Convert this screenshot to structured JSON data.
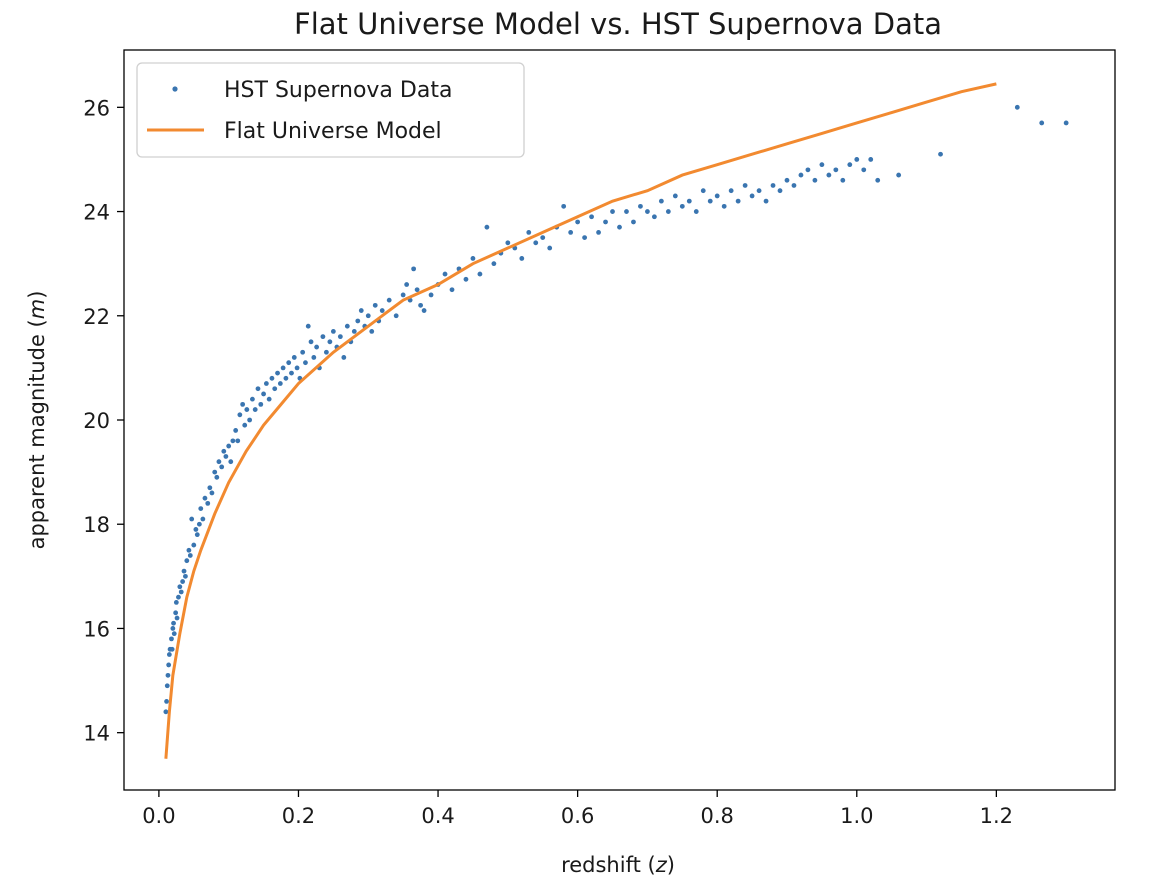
{
  "chart_data": {
    "type": "scatter",
    "title": "Flat Universe Model vs. HST Supernova Data",
    "xlabel": "redshift (",
    "xlabel_var": "z",
    "xlabel_close": ")",
    "ylabel": "apparent magnitude (",
    "ylabel_var": "m",
    "ylabel_close": ")",
    "xlim": [
      -0.05,
      1.37
    ],
    "ylim": [
      12.9,
      27.1
    ],
    "x_ticks": [
      0.0,
      0.2,
      0.4,
      0.6,
      0.8,
      1.0,
      1.2
    ],
    "x_tick_labels": [
      "0.0",
      "0.2",
      "0.4",
      "0.6",
      "0.8",
      "1.0",
      "1.2"
    ],
    "y_ticks": [
      14,
      16,
      18,
      20,
      22,
      24,
      26
    ],
    "y_tick_labels": [
      "14",
      "16",
      "18",
      "20",
      "22",
      "24",
      "26"
    ],
    "grid": false,
    "legend_position": "top-left",
    "colors": {
      "data": "#3a75b0",
      "model": "#f28a30"
    },
    "series": [
      {
        "name": "HST Supernova Data",
        "kind": "points",
        "points": [
          [
            0.01,
            14.4
          ],
          [
            0.011,
            14.6
          ],
          [
            0.012,
            14.9
          ],
          [
            0.013,
            15.1
          ],
          [
            0.014,
            15.3
          ],
          [
            0.015,
            15.5
          ],
          [
            0.016,
            15.6
          ],
          [
            0.018,
            15.8
          ],
          [
            0.019,
            15.6
          ],
          [
            0.02,
            16.0
          ],
          [
            0.021,
            16.1
          ],
          [
            0.022,
            15.9
          ],
          [
            0.024,
            16.3
          ],
          [
            0.025,
            16.5
          ],
          [
            0.026,
            16.2
          ],
          [
            0.028,
            16.6
          ],
          [
            0.03,
            16.8
          ],
          [
            0.032,
            16.7
          ],
          [
            0.034,
            16.9
          ],
          [
            0.036,
            17.1
          ],
          [
            0.038,
            17.0
          ],
          [
            0.04,
            17.3
          ],
          [
            0.043,
            17.5
          ],
          [
            0.045,
            17.4
          ],
          [
            0.047,
            18.1
          ],
          [
            0.05,
            17.6
          ],
          [
            0.053,
            17.9
          ],
          [
            0.055,
            17.8
          ],
          [
            0.058,
            18.0
          ],
          [
            0.06,
            18.3
          ],
          [
            0.063,
            18.1
          ],
          [
            0.066,
            18.5
          ],
          [
            0.07,
            18.4
          ],
          [
            0.073,
            18.7
          ],
          [
            0.076,
            18.6
          ],
          [
            0.08,
            19.0
          ],
          [
            0.083,
            18.9
          ],
          [
            0.086,
            19.2
          ],
          [
            0.09,
            19.1
          ],
          [
            0.093,
            19.4
          ],
          [
            0.096,
            19.3
          ],
          [
            0.1,
            19.5
          ],
          [
            0.103,
            19.2
          ],
          [
            0.106,
            19.6
          ],
          [
            0.11,
            19.8
          ],
          [
            0.113,
            19.6
          ],
          [
            0.116,
            20.1
          ],
          [
            0.12,
            20.3
          ],
          [
            0.123,
            19.9
          ],
          [
            0.126,
            20.2
          ],
          [
            0.13,
            20.0
          ],
          [
            0.134,
            20.4
          ],
          [
            0.138,
            20.2
          ],
          [
            0.142,
            20.6
          ],
          [
            0.146,
            20.3
          ],
          [
            0.15,
            20.5
          ],
          [
            0.154,
            20.7
          ],
          [
            0.158,
            20.4
          ],
          [
            0.162,
            20.8
          ],
          [
            0.166,
            20.6
          ],
          [
            0.17,
            20.9
          ],
          [
            0.174,
            20.7
          ],
          [
            0.178,
            21.0
          ],
          [
            0.182,
            20.8
          ],
          [
            0.186,
            21.1
          ],
          [
            0.19,
            20.9
          ],
          [
            0.194,
            21.2
          ],
          [
            0.198,
            21.0
          ],
          [
            0.202,
            20.8
          ],
          [
            0.206,
            21.3
          ],
          [
            0.21,
            21.1
          ],
          [
            0.214,
            21.8
          ],
          [
            0.218,
            21.5
          ],
          [
            0.222,
            21.2
          ],
          [
            0.226,
            21.4
          ],
          [
            0.23,
            21.0
          ],
          [
            0.235,
            21.6
          ],
          [
            0.24,
            21.3
          ],
          [
            0.245,
            21.5
          ],
          [
            0.25,
            21.7
          ],
          [
            0.255,
            21.4
          ],
          [
            0.26,
            21.6
          ],
          [
            0.265,
            21.2
          ],
          [
            0.27,
            21.8
          ],
          [
            0.275,
            21.5
          ],
          [
            0.28,
            21.7
          ],
          [
            0.285,
            21.9
          ],
          [
            0.29,
            22.1
          ],
          [
            0.295,
            21.8
          ],
          [
            0.3,
            22.0
          ],
          [
            0.305,
            21.7
          ],
          [
            0.31,
            22.2
          ],
          [
            0.315,
            21.9
          ],
          [
            0.32,
            22.1
          ],
          [
            0.33,
            22.3
          ],
          [
            0.34,
            22.0
          ],
          [
            0.35,
            22.4
          ],
          [
            0.355,
            22.6
          ],
          [
            0.36,
            22.3
          ],
          [
            0.365,
            22.9
          ],
          [
            0.37,
            22.5
          ],
          [
            0.375,
            22.2
          ],
          [
            0.38,
            22.1
          ],
          [
            0.39,
            22.4
          ],
          [
            0.4,
            22.6
          ],
          [
            0.41,
            22.8
          ],
          [
            0.42,
            22.5
          ],
          [
            0.43,
            22.9
          ],
          [
            0.44,
            22.7
          ],
          [
            0.45,
            23.1
          ],
          [
            0.46,
            22.8
          ],
          [
            0.47,
            23.7
          ],
          [
            0.48,
            23.0
          ],
          [
            0.49,
            23.2
          ],
          [
            0.5,
            23.4
          ],
          [
            0.51,
            23.3
          ],
          [
            0.52,
            23.1
          ],
          [
            0.53,
            23.6
          ],
          [
            0.54,
            23.4
          ],
          [
            0.55,
            23.5
          ],
          [
            0.56,
            23.3
          ],
          [
            0.57,
            23.7
          ],
          [
            0.58,
            24.1
          ],
          [
            0.59,
            23.6
          ],
          [
            0.6,
            23.8
          ],
          [
            0.61,
            23.5
          ],
          [
            0.62,
            23.9
          ],
          [
            0.63,
            23.6
          ],
          [
            0.64,
            23.8
          ],
          [
            0.65,
            24.0
          ],
          [
            0.66,
            23.7
          ],
          [
            0.67,
            24.0
          ],
          [
            0.68,
            23.8
          ],
          [
            0.69,
            24.1
          ],
          [
            0.7,
            24.0
          ],
          [
            0.71,
            23.9
          ],
          [
            0.72,
            24.2
          ],
          [
            0.73,
            24.0
          ],
          [
            0.74,
            24.3
          ],
          [
            0.75,
            24.1
          ],
          [
            0.76,
            24.2
          ],
          [
            0.77,
            24.0
          ],
          [
            0.78,
            24.4
          ],
          [
            0.79,
            24.2
          ],
          [
            0.8,
            24.3
          ],
          [
            0.81,
            24.1
          ],
          [
            0.82,
            24.4
          ],
          [
            0.83,
            24.2
          ],
          [
            0.84,
            24.5
          ],
          [
            0.85,
            24.3
          ],
          [
            0.86,
            24.4
          ],
          [
            0.87,
            24.2
          ],
          [
            0.88,
            24.5
          ],
          [
            0.89,
            24.4
          ],
          [
            0.9,
            24.6
          ],
          [
            0.91,
            24.5
          ],
          [
            0.92,
            24.7
          ],
          [
            0.93,
            24.8
          ],
          [
            0.94,
            24.6
          ],
          [
            0.95,
            24.9
          ],
          [
            0.96,
            24.7
          ],
          [
            0.97,
            24.8
          ],
          [
            0.98,
            24.6
          ],
          [
            0.99,
            24.9
          ],
          [
            1.0,
            25.0
          ],
          [
            1.01,
            24.8
          ],
          [
            1.02,
            25.0
          ],
          [
            1.03,
            24.6
          ],
          [
            1.06,
            24.7
          ],
          [
            1.12,
            25.1
          ],
          [
            1.23,
            26.0
          ],
          [
            1.265,
            25.7
          ],
          [
            1.3,
            25.7
          ]
        ]
      },
      {
        "name": "Flat Universe Model",
        "kind": "line",
        "points": [
          [
            0.01,
            13.5
          ],
          [
            0.015,
            14.4
          ],
          [
            0.02,
            15.1
          ],
          [
            0.03,
            15.9
          ],
          [
            0.04,
            16.6
          ],
          [
            0.05,
            17.1
          ],
          [
            0.06,
            17.5
          ],
          [
            0.08,
            18.2
          ],
          [
            0.1,
            18.8
          ],
          [
            0.125,
            19.4
          ],
          [
            0.15,
            19.9
          ],
          [
            0.175,
            20.3
          ],
          [
            0.2,
            20.7
          ],
          [
            0.25,
            21.3
          ],
          [
            0.3,
            21.8
          ],
          [
            0.35,
            22.3
          ],
          [
            0.4,
            22.6
          ],
          [
            0.45,
            23.0
          ],
          [
            0.5,
            23.3
          ],
          [
            0.55,
            23.6
          ],
          [
            0.6,
            23.9
          ],
          [
            0.65,
            24.2
          ],
          [
            0.7,
            24.4
          ],
          [
            0.75,
            24.7
          ],
          [
            0.8,
            24.9
          ],
          [
            0.85,
            25.1
          ],
          [
            0.9,
            25.3
          ],
          [
            0.95,
            25.5
          ],
          [
            1.0,
            25.7
          ],
          [
            1.05,
            25.9
          ],
          [
            1.1,
            26.1
          ],
          [
            1.15,
            26.3
          ],
          [
            1.2,
            26.45
          ]
        ]
      }
    ]
  }
}
